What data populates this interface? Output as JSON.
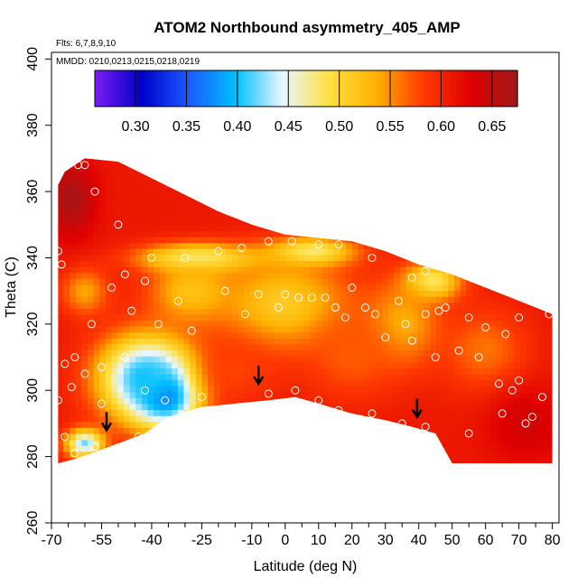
{
  "chart_data": {
    "type": "heatmap",
    "title": "ATOM2 Northbound asymmetry_405_AMP",
    "flights_label": "Flts: 6,7,8,9,10",
    "dates_label": "MMDD: 0210,0213,0215,0218,0219",
    "xlabel": "Latitude (deg N)",
    "ylabel": "Theta (C)",
    "xlim": [
      -70,
      82
    ],
    "ylim": [
      260,
      402
    ],
    "x_ticks": [
      -70,
      -55,
      -40,
      -25,
      -10,
      10,
      20,
      30,
      40,
      50,
      60,
      70,
      80
    ],
    "x_ticks_major": [
      -70,
      -55,
      -40,
      -25,
      -10,
      0,
      10,
      20,
      30,
      40,
      50,
      60,
      70,
      80
    ],
    "x_tick_labels": [
      "-70",
      "-55",
      "-40",
      "-25",
      "-10",
      "0",
      "10",
      "20",
      "30",
      "40",
      "50",
      "60",
      "70",
      "80"
    ],
    "x_minor_ticks": [
      -65,
      -60,
      -50,
      -45,
      -35,
      -30,
      -20,
      -15,
      -5,
      5,
      15,
      25,
      35,
      45,
      55,
      65,
      75
    ],
    "y_ticks": [
      260,
      280,
      300,
      320,
      340,
      360,
      380,
      400
    ],
    "colorbar": {
      "min": 0.26,
      "max": 0.675,
      "ticks": [
        0.3,
        0.35,
        0.4,
        0.45,
        0.5,
        0.55,
        0.6,
        0.65
      ],
      "tick_labels": [
        "0.30",
        "0.35",
        "0.40",
        "0.45",
        "0.50",
        "0.55",
        "0.60",
        "0.65"
      ],
      "stops": [
        "#7a1cf2",
        "#0000c8",
        "#1a5aff",
        "#00c0ff",
        "#e8f6ff",
        "#ffe040",
        "#ffb000",
        "#ff3a00",
        "#e00000",
        "#a01818"
      ]
    },
    "boundary": {
      "top": [
        [
          -68,
          362
        ],
        [
          -66,
          366
        ],
        [
          -60,
          370
        ],
        [
          -50,
          369
        ],
        [
          -40,
          364
        ],
        [
          -30,
          359
        ],
        [
          -20,
          354
        ],
        [
          -10,
          350
        ],
        [
          0,
          347
        ],
        [
          10,
          346
        ],
        [
          20,
          345
        ],
        [
          30,
          342
        ],
        [
          40,
          338
        ],
        [
          50,
          335
        ],
        [
          60,
          331
        ],
        [
          70,
          327
        ],
        [
          80,
          323
        ]
      ],
      "bottom": [
        [
          80,
          278
        ],
        [
          70,
          278
        ],
        [
          60,
          278
        ],
        [
          50,
          278
        ],
        [
          45,
          287
        ],
        [
          38,
          289
        ],
        [
          30,
          291
        ],
        [
          20,
          293
        ],
        [
          10,
          296
        ],
        [
          3,
          298
        ],
        [
          -5,
          297
        ],
        [
          -15,
          296
        ],
        [
          -25,
          295
        ],
        [
          -35,
          292
        ],
        [
          -42,
          287
        ],
        [
          -50,
          284
        ],
        [
          -58,
          281
        ],
        [
          -64,
          279
        ],
        [
          -68,
          278
        ]
      ]
    },
    "features": [
      {
        "x": -36,
        "y": 300,
        "value": 0.3,
        "sx": 7,
        "sy": 7
      },
      {
        "x": -42,
        "y": 304,
        "value": 0.4,
        "sx": 10,
        "sy": 9
      },
      {
        "x": -60,
        "y": 284,
        "value": 0.42,
        "sx": 4,
        "sy": 3
      },
      {
        "x": -26,
        "y": 340,
        "value": 0.46,
        "sx": 12,
        "sy": 3
      },
      {
        "x": 8,
        "y": 342,
        "value": 0.47,
        "sx": 9,
        "sy": 3
      },
      {
        "x": 44,
        "y": 333,
        "value": 0.47,
        "sx": 6,
        "sy": 4
      },
      {
        "x": 0,
        "y": 326,
        "value": 0.51,
        "sx": 14,
        "sy": 10
      },
      {
        "x": -28,
        "y": 330,
        "value": 0.52,
        "sx": 9,
        "sy": 7
      },
      {
        "x": 35,
        "y": 320,
        "value": 0.53,
        "sx": 8,
        "sy": 9
      },
      {
        "x": -60,
        "y": 330,
        "value": 0.54,
        "sx": 5,
        "sy": 5
      },
      {
        "x": 60,
        "y": 312,
        "value": 0.56,
        "sx": 9,
        "sy": 9
      },
      {
        "x": 20,
        "y": 310,
        "value": 0.57,
        "sx": 10,
        "sy": 9
      },
      {
        "x": -15,
        "y": 306,
        "value": 0.58,
        "sx": 9,
        "sy": 7
      },
      {
        "x": -64,
        "y": 358,
        "value": 0.67,
        "sx": 5,
        "sy": 8
      },
      {
        "x": 72,
        "y": 290,
        "value": 0.64,
        "sx": 8,
        "sy": 8
      }
    ],
    "base_value": 0.61,
    "points": [
      [
        -68,
        342
      ],
      [
        -67,
        338
      ],
      [
        -66,
        308
      ],
      [
        -63,
        310
      ],
      [
        -64,
        301
      ],
      [
        -68,
        297
      ],
      [
        -66,
        286
      ],
      [
        -63,
        281
      ],
      [
        -57,
        283
      ],
      [
        -60,
        305
      ],
      [
        -58,
        320
      ],
      [
        -55,
        307
      ],
      [
        -48,
        310
      ],
      [
        -42,
        300
      ],
      [
        -36,
        297
      ],
      [
        -25,
        298
      ],
      [
        -44,
        286
      ],
      [
        -38,
        320
      ],
      [
        -32,
        327
      ],
      [
        -30,
        340
      ],
      [
        -40,
        340
      ],
      [
        -42,
        333
      ],
      [
        -48,
        335
      ],
      [
        -46,
        324
      ],
      [
        -52,
        331
      ],
      [
        -50,
        350
      ],
      [
        -28,
        318
      ],
      [
        -18,
        330
      ],
      [
        -12,
        323
      ],
      [
        -8,
        329
      ],
      [
        -2,
        325
      ],
      [
        0,
        329
      ],
      [
        4,
        328
      ],
      [
        8,
        328
      ],
      [
        12,
        328
      ],
      [
        15,
        325
      ],
      [
        18,
        322
      ],
      [
        24,
        325
      ],
      [
        20,
        331
      ],
      [
        2,
        345
      ],
      [
        -5,
        345
      ],
      [
        -13,
        343
      ],
      [
        -20,
        342
      ],
      [
        10,
        344
      ],
      [
        16,
        344
      ],
      [
        26,
        340
      ],
      [
        38,
        334
      ],
      [
        42,
        336
      ],
      [
        36,
        320
      ],
      [
        42,
        323
      ],
      [
        46,
        324
      ],
      [
        48,
        325
      ],
      [
        55,
        322
      ],
      [
        60,
        319
      ],
      [
        66,
        317
      ],
      [
        70,
        322
      ],
      [
        58,
        310
      ],
      [
        52,
        312
      ],
      [
        45,
        310
      ],
      [
        38,
        315
      ],
      [
        30,
        316
      ],
      [
        27,
        323
      ],
      [
        34,
        327
      ],
      [
        64,
        302
      ],
      [
        70,
        303
      ],
      [
        68,
        300
      ],
      [
        74,
        292
      ],
      [
        77,
        298
      ],
      [
        79,
        323
      ],
      [
        -5,
        299
      ],
      [
        3,
        300
      ],
      [
        10,
        297
      ],
      [
        16,
        294
      ],
      [
        26,
        293
      ],
      [
        35,
        290
      ],
      [
        42,
        289
      ],
      [
        55,
        287
      ],
      [
        65,
        293
      ],
      [
        72,
        290
      ],
      [
        -55,
        296
      ],
      [
        -57,
        360
      ],
      [
        -60,
        368
      ],
      [
        -62,
        368
      ]
    ],
    "arrows": [
      [
        -53.5,
        288
      ],
      [
        -8,
        302
      ],
      [
        39.5,
        292
      ]
    ]
  }
}
